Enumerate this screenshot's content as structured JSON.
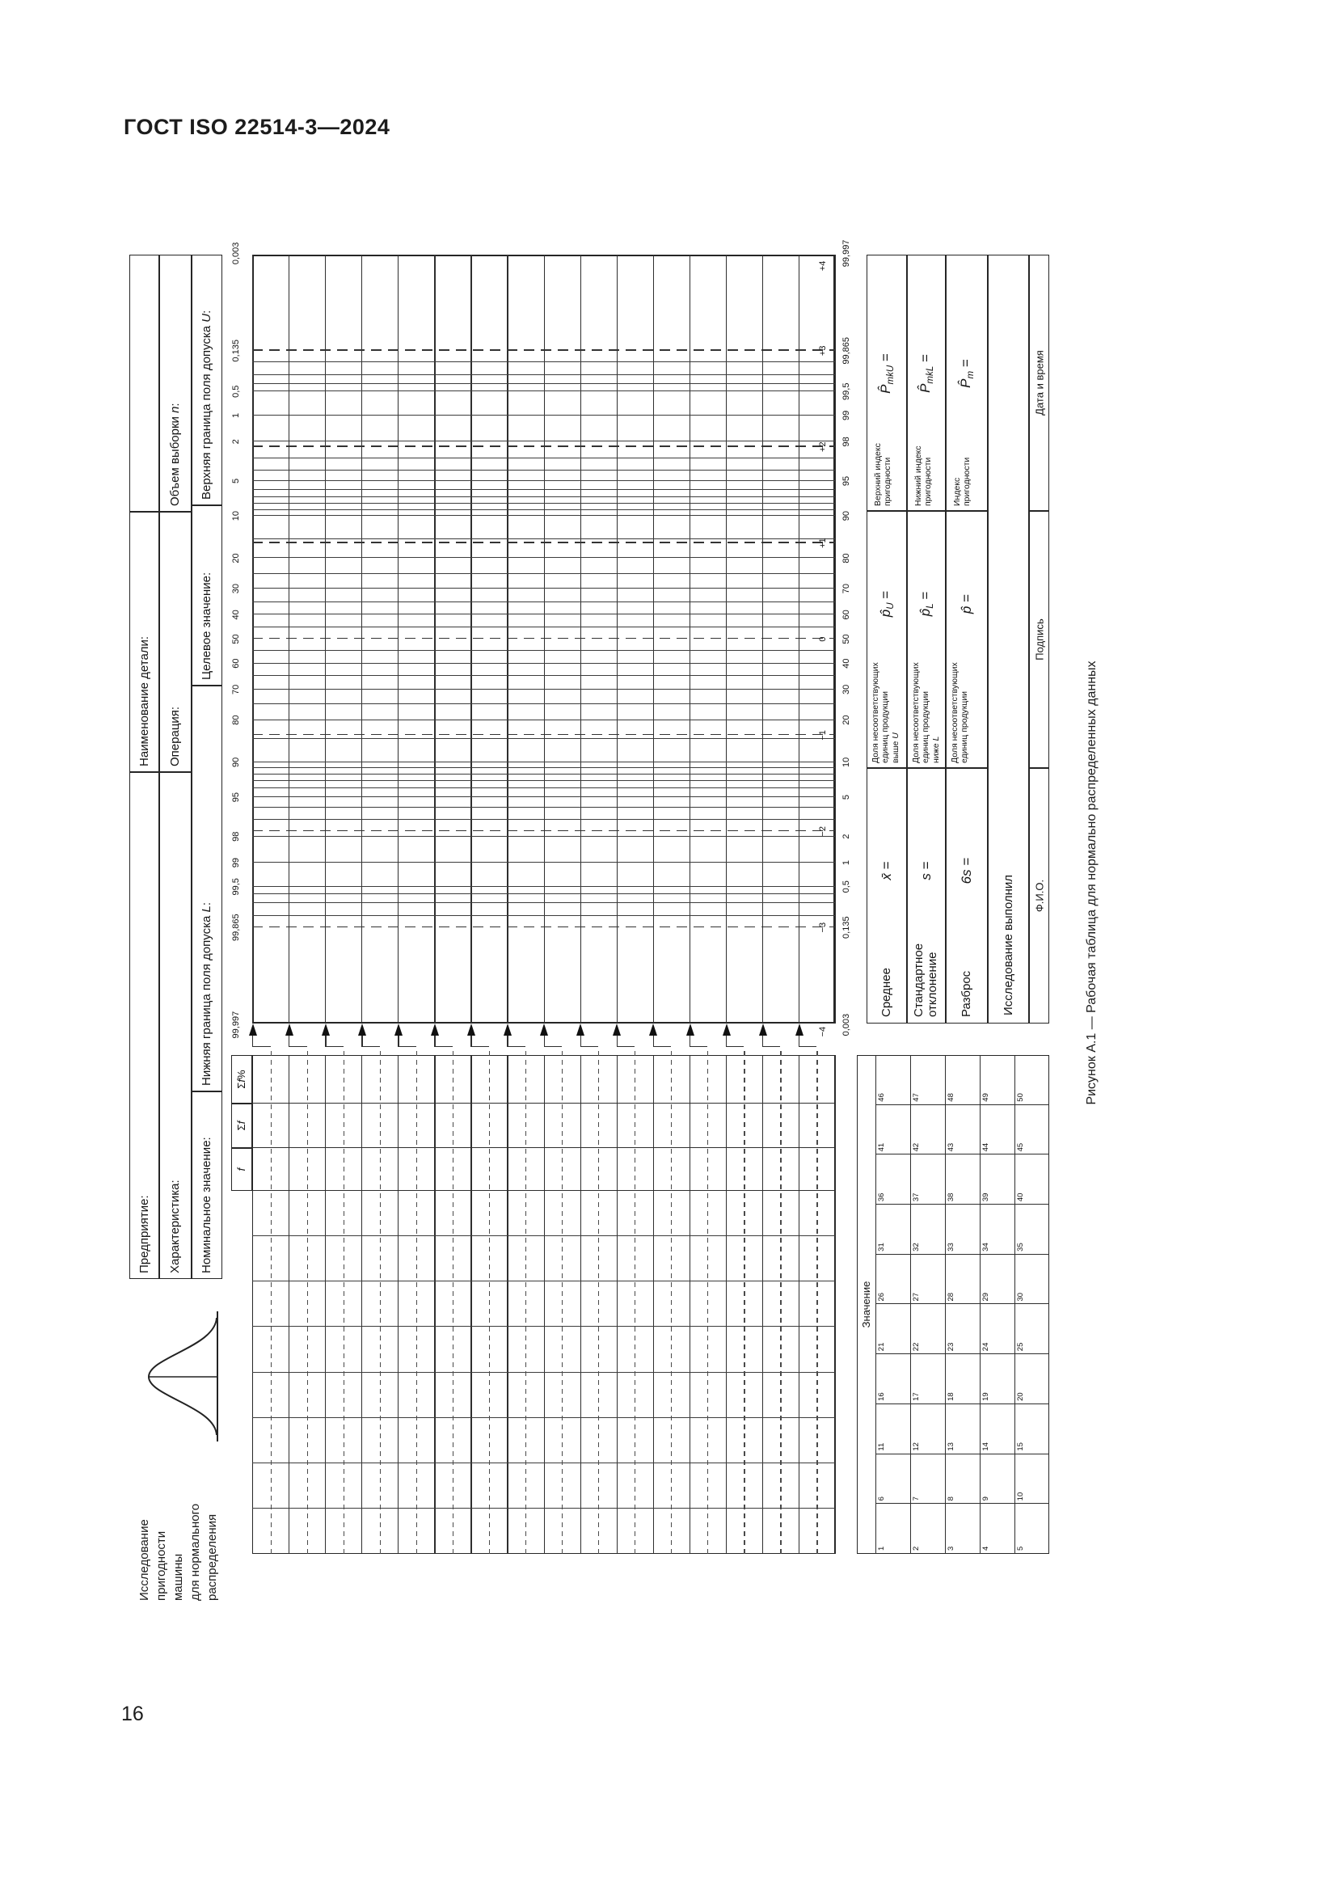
{
  "page": {
    "doc_header": "ГОСТ ISO 22514-3—2024",
    "page_number": "16"
  },
  "figure": {
    "caption": "Рисунок А.1 — Рабочая таблица для нормально распределенных данных",
    "study_title_lines": [
      "Исследование",
      "пригодности",
      "машины",
      "для нормального",
      "распределения"
    ],
    "normal_curve_icon": "normal-distribution-curve",
    "header_rows": [
      {
        "cells": [
          {
            "text": "Предприятие:",
            "em": "",
            "tail": ""
          },
          {
            "text": "Наименование детали:",
            "em": "",
            "tail": ""
          },
          {
            "text": "",
            "em": "",
            "tail": ""
          }
        ]
      },
      {
        "cells": [
          {
            "text": "Характеристика:",
            "em": "",
            "tail": ""
          },
          {
            "text": "Операция:",
            "em": "",
            "tail": ""
          },
          {
            "text": "Объем выборки ",
            "em": "n",
            "tail": ":"
          }
        ]
      },
      {
        "cells": [
          {
            "text": "Номинальное значение:",
            "em": "",
            "tail": ""
          },
          {
            "text": "Нижняя граница поля допуска ",
            "em": "L",
            "tail": ":"
          },
          {
            "text": "Целевое значение:",
            "em": "",
            "tail": ""
          },
          {
            "text": "Верхняя граница поля допуска ",
            "em": "U",
            "tail": ":"
          }
        ]
      }
    ],
    "tally_headers": [
      {
        "pre": "",
        "em": "f",
        "post": ""
      },
      {
        "pre": "Σ",
        "em": "f",
        "post": ""
      },
      {
        "pre": "Σ",
        "em": "f",
        "post": "%"
      }
    ],
    "value_table": {
      "header": "Значение",
      "numbers": [
        1,
        2,
        3,
        4,
        5,
        6,
        7,
        8,
        9,
        10,
        11,
        12,
        13,
        14,
        15,
        16,
        17,
        18,
        19,
        20,
        21,
        22,
        23,
        24,
        25,
        26,
        27,
        28,
        29,
        30,
        31,
        32,
        33,
        34,
        35,
        36,
        37,
        38,
        39,
        40,
        41,
        42,
        43,
        44,
        45,
        46,
        47,
        48,
        49,
        50
      ]
    },
    "scales": {
      "top_percent_labels": [
        {
          "t": "0,003",
          "p": 0.003
        },
        {
          "t": "0,135",
          "p": 0.135
        },
        {
          "t": "0,5",
          "p": 0.5
        },
        {
          "t": "1",
          "p": 1
        },
        {
          "t": "2",
          "p": 2
        },
        {
          "t": "5",
          "p": 5
        },
        {
          "t": "10",
          "p": 10
        },
        {
          "t": "20",
          "p": 20
        },
        {
          "t": "30",
          "p": 30
        },
        {
          "t": "40",
          "p": 40
        },
        {
          "t": "50",
          "p": 50
        },
        {
          "t": "60",
          "p": 60
        },
        {
          "t": "70",
          "p": 70
        },
        {
          "t": "80",
          "p": 80
        },
        {
          "t": "90",
          "p": 90
        },
        {
          "t": "95",
          "p": 95
        },
        {
          "t": "98",
          "p": 98
        },
        {
          "t": "99",
          "p": 99
        },
        {
          "t": "99,5",
          "p": 99.5
        },
        {
          "t": "99,865",
          "p": 99.865
        },
        {
          "t": "99,997",
          "p": 99.997
        }
      ],
      "bottom_percent_labels": [
        {
          "t": "0,003",
          "p": 0.003
        },
        {
          "t": "0,135",
          "p": 0.135
        },
        {
          "t": "0,5",
          "p": 0.5
        },
        {
          "t": "1",
          "p": 1
        },
        {
          "t": "2",
          "p": 2
        },
        {
          "t": "5",
          "p": 5
        },
        {
          "t": "10",
          "p": 10
        },
        {
          "t": "20",
          "p": 20
        },
        {
          "t": "30",
          "p": 30
        },
        {
          "t": "40",
          "p": 40
        },
        {
          "t": "50",
          "p": 50
        },
        {
          "t": "60",
          "p": 60
        },
        {
          "t": "70",
          "p": 70
        },
        {
          "t": "80",
          "p": 80
        },
        {
          "t": "90",
          "p": 90
        },
        {
          "t": "95",
          "p": 95
        },
        {
          "t": "98",
          "p": 98
        },
        {
          "t": "99",
          "p": 99
        },
        {
          "t": "99,5",
          "p": 99.5
        },
        {
          "t": "99,865",
          "p": 99.865
        },
        {
          "t": "99,997",
          "p": 99.997
        }
      ],
      "sigma_labels": [
        {
          "t": "+4",
          "v": 4
        },
        {
          "t": "+3",
          "v": 3
        },
        {
          "t": "+2",
          "v": 2
        },
        {
          "t": "+1",
          "v": 1
        },
        {
          "t": "0",
          "v": 0
        },
        {
          "t": "−1",
          "v": -1
        },
        {
          "t": "−2",
          "v": -2
        },
        {
          "t": "−3",
          "v": -3
        },
        {
          "t": "−4",
          "v": -4
        }
      ],
      "solid_lines_p_above": [
        0.2,
        0.3,
        0.4,
        0.5,
        1,
        2,
        3,
        4,
        5,
        6,
        7,
        8,
        9,
        10,
        15,
        20,
        25,
        30,
        35,
        40,
        45,
        55,
        60,
        65,
        70,
        75,
        80,
        85,
        90,
        91,
        92,
        93,
        94,
        95,
        96,
        97,
        98,
        99,
        99.5,
        99.6,
        99.7,
        99.8
      ],
      "sigma_dash_lines": [
        -3,
        -2,
        -1,
        0,
        1,
        2,
        3
      ]
    },
    "stats": {
      "rows": [
        {
          "name_lines": [
            "Среднее"
          ],
          "formula": {
            "base": "x̄",
            "sub": "",
            "eq": "="
          },
          "share_lines": [
            "Доля несоответствующих",
            "единиц продукции"
          ],
          "share_last": {
            "text": "выше ",
            "em": "U"
          },
          "share_formula": {
            "base": "p̂",
            "sub": "U",
            "eq": "="
          },
          "index_lines": [
            "Верхний индекс",
            "пригодности"
          ],
          "index_formula": {
            "base": "P̂",
            "sub": "mkU",
            "eq": "="
          }
        },
        {
          "name_lines": [
            "Стандартное",
            "отклонение"
          ],
          "formula": {
            "base": "s",
            "sub": "",
            "eq": "="
          },
          "share_lines": [
            "Доля несоответствующих",
            "единиц продукции"
          ],
          "share_last": {
            "text": "ниже ",
            "em": "L"
          },
          "share_formula": {
            "base": "p̂",
            "sub": "L",
            "eq": "="
          },
          "index_lines": [
            "Нижний индекс",
            "пригодности"
          ],
          "index_formula": {
            "base": "P̂",
            "sub": "mkL",
            "eq": "="
          }
        },
        {
          "name_lines": [
            "Разброс"
          ],
          "formula": {
            "base": "6s",
            "sub": "",
            "eq": "="
          },
          "share_lines": [
            "Доля несоответствующих",
            "единиц продукции"
          ],
          "share_last": null,
          "share_formula": {
            "base": "p̂",
            "sub": "",
            "eq": "="
          },
          "index_lines": [
            "Индекс",
            "пригодности"
          ],
          "index_formula": {
            "base": "P̂",
            "sub": "m",
            "eq": "="
          }
        }
      ],
      "performed": "Исследование выполнил",
      "signature_cells": [
        "Ф.И.О.",
        "Подпись",
        "Дата и время"
      ]
    }
  }
}
